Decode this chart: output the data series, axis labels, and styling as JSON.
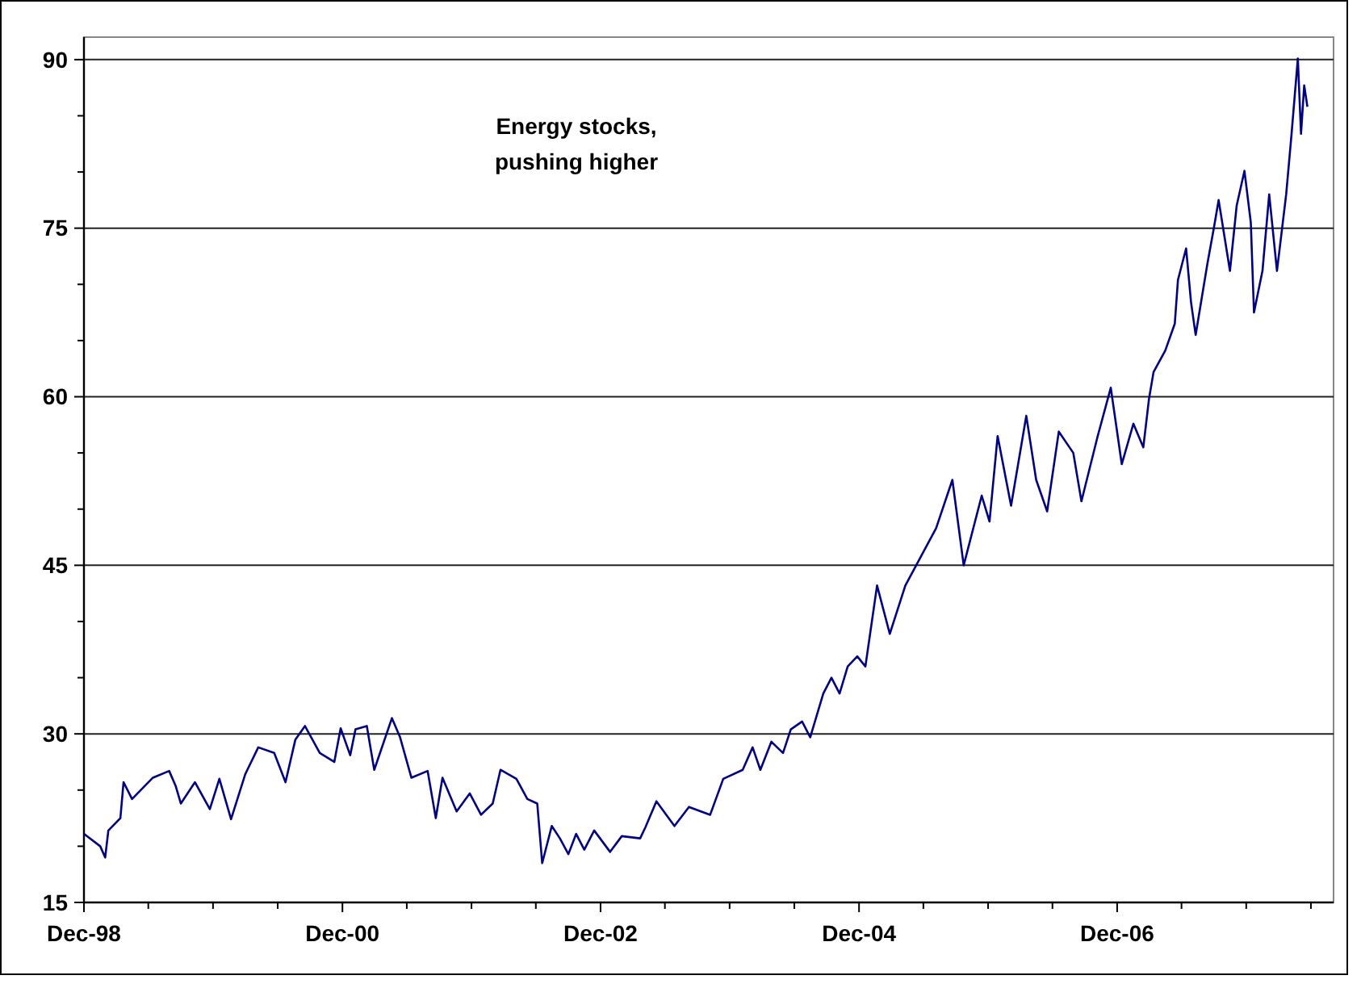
{
  "chart_data": {
    "type": "line",
    "annotations": [
      "Energy stocks, pushing higher"
    ],
    "x": [
      "1998-12-01",
      "1999-01-16",
      "1999-01-30",
      "1999-02-08",
      "1999-03-14",
      "1999-03-23",
      "1999-04-16",
      "1999-06-14",
      "1999-07-30",
      "1999-08-17",
      "1999-09-01",
      "1999-10-11",
      "1999-11-22",
      "1999-12-19",
      "2000-01-21",
      "2000-03-01",
      "2000-04-07",
      "2000-05-22",
      "2000-06-23",
      "2000-07-21",
      "2000-08-17",
      "2000-09-28",
      "2000-11-08",
      "2000-11-26",
      "2000-12-23",
      "2001-01-07",
      "2001-02-08",
      "2001-03-01",
      "2001-04-20",
      "2001-05-13",
      "2001-06-14",
      "2001-07-30",
      "2001-08-22",
      "2001-09-10",
      "2001-10-20",
      "2001-11-26",
      "2001-12-28",
      "2002-01-30",
      "2002-02-21",
      "2002-04-07",
      "2002-05-08",
      "2002-06-05",
      "2002-06-19",
      "2002-07-16",
      "2002-08-08",
      "2002-09-01",
      "2002-09-23",
      "2002-10-16",
      "2002-11-13",
      "2002-12-28",
      "2003-01-30",
      "2003-03-23",
      "2003-04-07",
      "2003-05-08",
      "2003-06-28",
      "2003-08-08",
      "2003-10-07",
      "2003-11-13",
      "2004-01-07",
      "2004-02-04",
      "2004-02-26",
      "2004-03-28",
      "2004-04-30",
      "2004-05-22",
      "2004-06-23",
      "2004-07-16",
      "2004-08-22",
      "2004-09-14",
      "2004-10-07",
      "2004-10-30",
      "2004-11-26",
      "2004-12-19",
      "2005-01-21",
      "2005-02-26",
      "2005-04-11",
      "2005-07-07",
      "2005-08-22",
      "2005-09-23",
      "2005-11-13",
      "2005-12-05",
      "2005-12-28",
      "2006-02-04",
      "2006-03-19",
      "2006-04-16",
      "2006-05-17",
      "2006-06-19",
      "2006-07-30",
      "2006-08-22",
      "2006-10-07",
      "2006-11-13",
      "2006-12-14",
      "2007-01-16",
      "2007-02-13",
      "2007-03-01",
      "2007-03-14",
      "2007-04-16",
      "2007-05-13",
      "2007-05-22",
      "2007-06-14",
      "2007-06-28",
      "2007-07-11",
      "2007-08-13",
      "2007-09-01",
      "2007-09-14",
      "2007-10-16",
      "2007-11-04",
      "2007-11-26",
      "2007-12-14",
      "2007-12-23",
      "2008-01-16",
      "2008-02-04",
      "2008-02-26",
      "2008-03-23",
      "2008-04-07",
      "2008-04-25",
      "2008-05-04",
      "2008-05-13",
      "2008-05-22"
    ],
    "series": [
      {
        "color": "#000080",
        "values": [
          21.1,
          20,
          19,
          21.4,
          22.5,
          25.7,
          24.2,
          26.1,
          26.7,
          25.4,
          23.8,
          25.7,
          23.3,
          26,
          22.4,
          26.4,
          28.8,
          28.3,
          25.7,
          29.5,
          30.7,
          28.3,
          27.5,
          30.5,
          28.1,
          30.4,
          30.7,
          26.8,
          31.4,
          29.7,
          26.1,
          26.7,
          22.5,
          26.1,
          23.1,
          24.7,
          22.8,
          23.8,
          26.8,
          26,
          24.2,
          23.8,
          18.5,
          21.8,
          20.7,
          19.3,
          21.1,
          19.7,
          21.4,
          19.5,
          20.9,
          20.7,
          21.7,
          24,
          21.8,
          23.5,
          22.8,
          26,
          26.8,
          28.8,
          26.8,
          29.3,
          28.3,
          30.4,
          31.1,
          29.7,
          33.6,
          35,
          33.6,
          36,
          36.9,
          36,
          43.2,
          38.9,
          43.2,
          48.3,
          52.6,
          45,
          51.2,
          48.9,
          56.5,
          50.3,
          58.3,
          52.6,
          49.8,
          56.9,
          55,
          50.7,
          56.5,
          60.8,
          54,
          57.6,
          55.5,
          59.8,
          62.2,
          64.1,
          66.5,
          70.4,
          73.2,
          68.4,
          65.5,
          71.8,
          75.1,
          77.5,
          71.2,
          77,
          80.1,
          75.5,
          67.5,
          71.2,
          78,
          71.2,
          78,
          83.3,
          90.1,
          83.4,
          87.7,
          85.8
        ]
      }
    ],
    "xlim": [
      "1998-12-01",
      "2008-08-04"
    ],
    "xticks": [
      {
        "value": "1998-12-01",
        "label": "Dec-98"
      },
      {
        "value": "1999-06-01",
        "label": null
      },
      {
        "value": "1999-12-01",
        "label": null
      },
      {
        "value": "2000-06-01",
        "label": null
      },
      {
        "value": "2000-12-01",
        "label": "Dec-00"
      },
      {
        "value": "2001-06-01",
        "label": null
      },
      {
        "value": "2001-12-01",
        "label": null
      },
      {
        "value": "2002-06-01",
        "label": null
      },
      {
        "value": "2002-12-01",
        "label": "Dec-02"
      },
      {
        "value": "2003-06-01",
        "label": null
      },
      {
        "value": "2003-12-01",
        "label": null
      },
      {
        "value": "2004-06-01",
        "label": null
      },
      {
        "value": "2004-12-01",
        "label": "Dec-04"
      },
      {
        "value": "2005-06-01",
        "label": null
      },
      {
        "value": "2005-12-01",
        "label": null
      },
      {
        "value": "2006-06-01",
        "label": null
      },
      {
        "value": "2006-12-01",
        "label": "Dec-06"
      },
      {
        "value": "2007-06-01",
        "label": null
      },
      {
        "value": "2007-12-01",
        "label": null
      },
      {
        "value": "2008-06-01",
        "label": null
      }
    ],
    "ylim": [
      15,
      92
    ],
    "yticks": [
      15,
      {
        "value": 20,
        "label": null
      },
      {
        "value": 25,
        "label": null
      },
      30,
      {
        "value": 35,
        "label": null
      },
      {
        "value": 40,
        "label": null
      },
      45,
      {
        "value": 50,
        "label": null
      },
      {
        "value": 55,
        "label": null
      },
      60,
      {
        "value": 65,
        "label": null
      },
      {
        "value": 70,
        "label": null
      },
      75,
      {
        "value": 80,
        "label": null
      },
      {
        "value": 85,
        "label": null
      },
      90
    ],
    "grid": "y",
    "marker": "none",
    "line_style": "solid"
  }
}
